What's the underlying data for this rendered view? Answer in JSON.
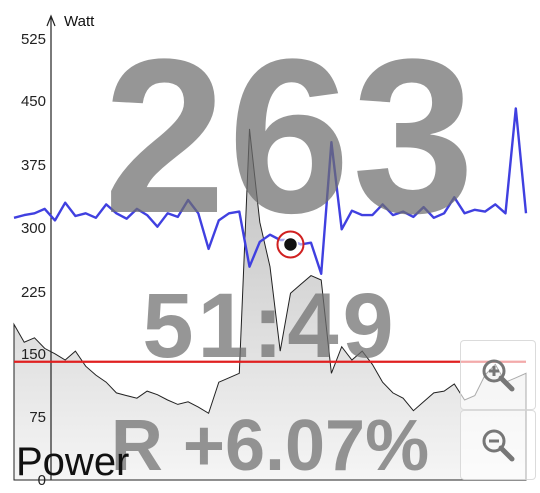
{
  "overlay": {
    "power_value": "263",
    "time": "51:49",
    "ratio": "R +6.07%"
  },
  "metric_label": "Power",
  "colors": {
    "power_line": "#4040e0",
    "threshold_line": "#e02020",
    "area_fill": "#c8c8c8",
    "cursor_ring": "#d02020"
  },
  "icons": {
    "zoom_in": "zoom-in-icon",
    "zoom_out": "zoom-out-icon"
  },
  "chart_data": {
    "type": "line",
    "ylabel": "Watt",
    "ylim": [
      0,
      540
    ],
    "yticks": [
      "525",
      "450",
      "375",
      "300",
      "225",
      "150",
      "75",
      "0"
    ],
    "yticks_values": [
      525,
      450,
      375,
      300,
      225,
      150,
      75,
      0
    ],
    "grid": false,
    "threshold": 133,
    "cursor": {
      "x": 54,
      "y": 265
    },
    "series": [
      {
        "kind": "line",
        "x": [
          0,
          2,
          4,
          6,
          8,
          10,
          12,
          14,
          16,
          18,
          20,
          22,
          24,
          26,
          28,
          30,
          32,
          34,
          36,
          38,
          40,
          42,
          44,
          46,
          48,
          50,
          52,
          54,
          56,
          58,
          60,
          62,
          64,
          66,
          68,
          70,
          72,
          74,
          76,
          78,
          80,
          82,
          84,
          86,
          88,
          90,
          92,
          94,
          96,
          98,
          100
        ],
        "values": [
          295,
          298,
          300,
          305,
          292,
          312,
          297,
          300,
          295,
          310,
          300,
          294,
          305,
          298,
          285,
          300,
          296,
          315,
          300,
          260,
          292,
          300,
          302,
          240,
          268,
          276,
          270,
          270,
          265,
          267,
          232,
          380,
          282,
          303,
          298,
          298,
          310,
          298,
          302,
          296,
          307,
          295,
          300,
          318,
          300,
          304,
          302,
          310,
          300,
          418,
          300
        ]
      },
      {
        "kind": "area",
        "x": [
          0,
          2,
          4,
          6,
          8,
          10,
          12,
          14,
          16,
          18,
          20,
          22,
          24,
          26,
          28,
          30,
          32,
          34,
          36,
          38,
          40,
          42,
          44,
          46,
          48,
          50,
          52,
          54,
          56,
          58,
          60,
          62,
          64,
          66,
          68,
          70,
          72,
          74,
          76,
          78,
          80,
          82,
          84,
          86,
          88,
          90,
          92,
          94,
          96,
          98,
          100
        ],
        "values": [
          175,
          155,
          160,
          148,
          142,
          135,
          145,
          128,
          118,
          110,
          98,
          95,
          92,
          100,
          96,
          90,
          85,
          88,
          82,
          75,
          110,
          115,
          120,
          395,
          290,
          240,
          145,
          210,
          220,
          230,
          225,
          120,
          150,
          135,
          145,
          130,
          110,
          98,
          92,
          78,
          88,
          98,
          100,
          108,
          90,
          95,
          118,
          130,
          110,
          115,
          120
        ]
      }
    ]
  }
}
